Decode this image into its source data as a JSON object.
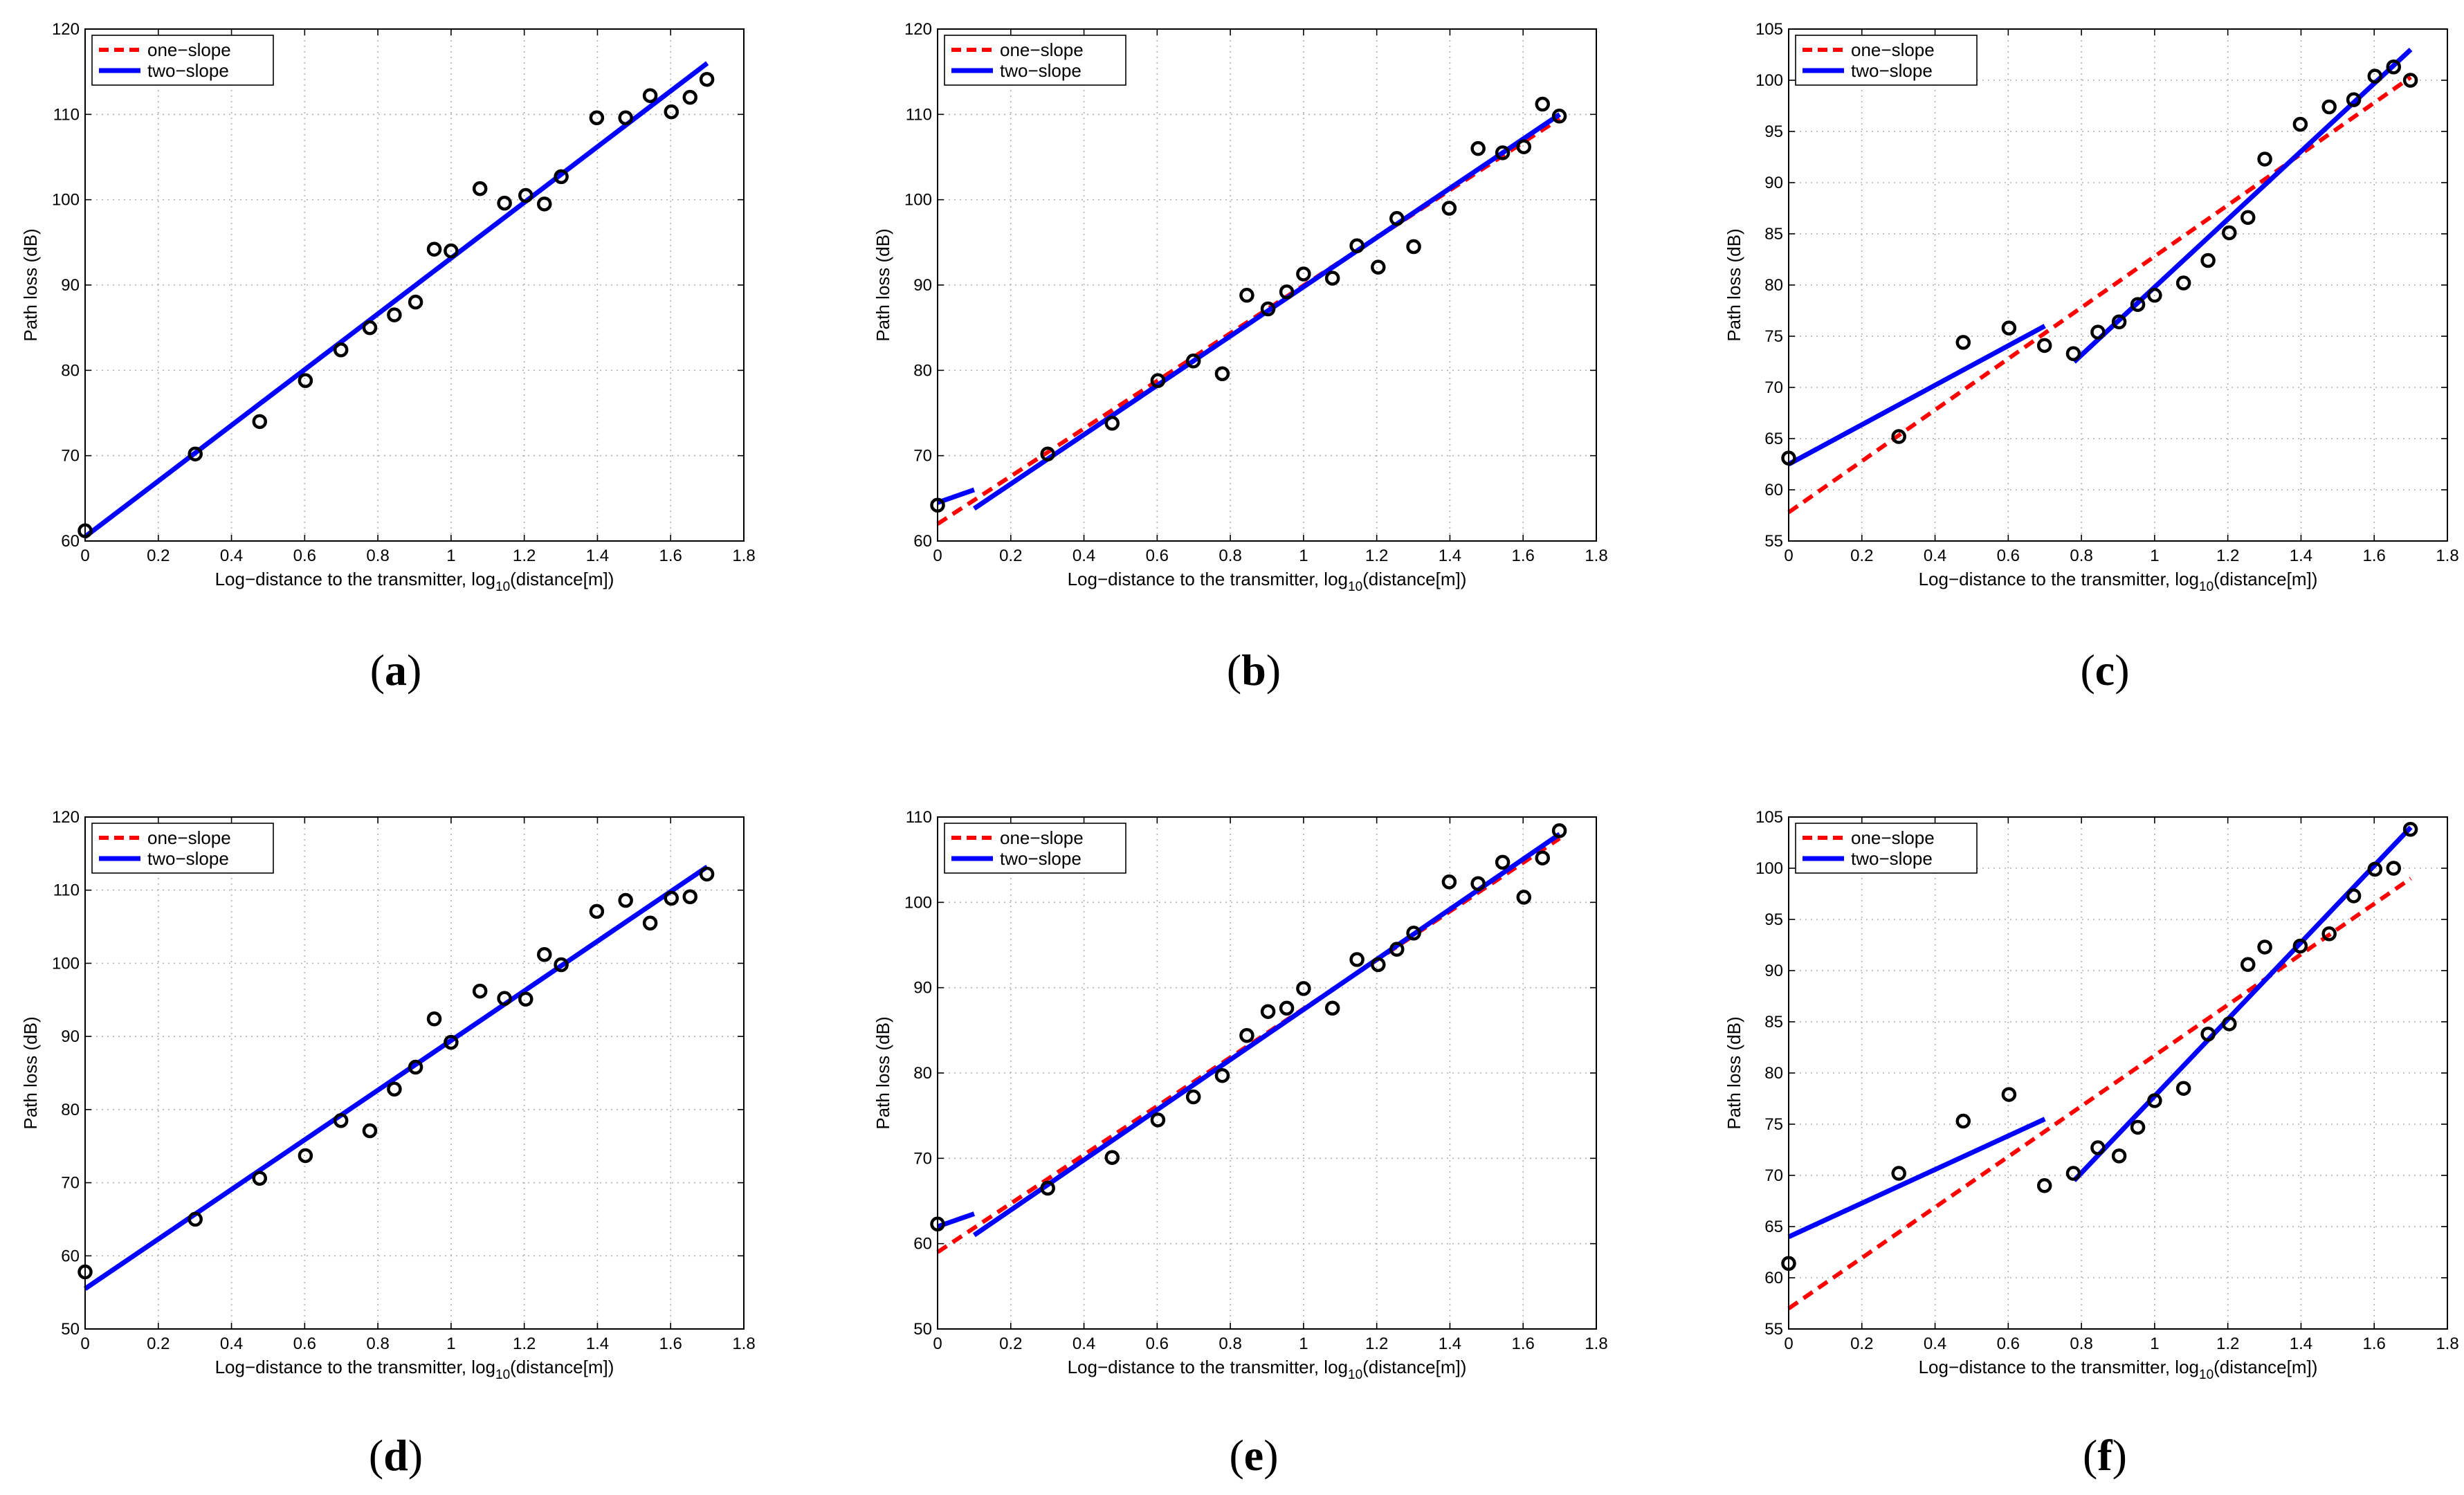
{
  "figure": {
    "xlabel_prefix": "Log−distance to the transmitter, log",
    "xlabel_sub": "10",
    "xlabel_suffix": "(distance[m])",
    "ylabel": "Path loss (dB)",
    "legend": {
      "one_slope": "one−slope",
      "two_slope": "two−slope"
    },
    "colors": {
      "one_slope": "#ff0000",
      "two_slope": "#0000ff",
      "points": "#000000"
    }
  },
  "chart_data": [
    {
      "type": "line",
      "panel": "a",
      "caption_label": "a",
      "caption_open": "(",
      "caption_close": ")",
      "xlim": [
        0,
        1.8
      ],
      "ylim": [
        60,
        120
      ],
      "xticks": [
        "0",
        "0.2",
        "0.4",
        "0.6",
        "0.8",
        "1",
        "1.2",
        "1.4",
        "1.6",
        "1.8"
      ],
      "yticks": [
        "60",
        "70",
        "80",
        "90",
        "100",
        "110",
        "120"
      ],
      "points": [
        [
          0.0,
          61.2
        ],
        [
          0.301,
          70.2
        ],
        [
          0.477,
          74.0
        ],
        [
          0.602,
          78.8
        ],
        [
          0.699,
          82.4
        ],
        [
          0.778,
          85.0
        ],
        [
          0.845,
          86.5
        ],
        [
          0.903,
          88.0
        ],
        [
          0.954,
          94.2
        ],
        [
          1.0,
          94.0
        ],
        [
          1.079,
          101.3
        ],
        [
          1.146,
          99.6
        ],
        [
          1.204,
          100.5
        ],
        [
          1.255,
          99.5
        ],
        [
          1.301,
          102.7
        ],
        [
          1.398,
          109.6
        ],
        [
          1.477,
          109.6
        ],
        [
          1.544,
          112.2
        ],
        [
          1.602,
          110.3
        ],
        [
          1.653,
          112.0
        ],
        [
          1.699,
          114.1
        ]
      ],
      "one_slope": [
        [
          0,
          60.5
        ],
        [
          1.7,
          116.0
        ]
      ],
      "two_slope": [
        [
          [
            0,
            60.5
          ],
          [
            1.7,
            116.0
          ]
        ]
      ]
    },
    {
      "type": "line",
      "panel": "b",
      "caption_label": "b",
      "caption_open": "(",
      "caption_close": ")",
      "xlim": [
        0,
        1.8
      ],
      "ylim": [
        60,
        120
      ],
      "xticks": [
        "0",
        "0.2",
        "0.4",
        "0.6",
        "0.8",
        "1",
        "1.2",
        "1.4",
        "1.6",
        "1.8"
      ],
      "yticks": [
        "60",
        "70",
        "80",
        "90",
        "100",
        "110",
        "120"
      ],
      "points": [
        [
          0.0,
          64.2
        ],
        [
          0.301,
          70.2
        ],
        [
          0.477,
          73.8
        ],
        [
          0.602,
          78.8
        ],
        [
          0.699,
          81.1
        ],
        [
          0.778,
          79.6
        ],
        [
          0.845,
          88.8
        ],
        [
          0.903,
          87.2
        ],
        [
          0.954,
          89.2
        ],
        [
          1.0,
          91.3
        ],
        [
          1.079,
          90.8
        ],
        [
          1.146,
          94.6
        ],
        [
          1.204,
          92.1
        ],
        [
          1.255,
          97.8
        ],
        [
          1.301,
          94.5
        ],
        [
          1.398,
          99.0
        ],
        [
          1.477,
          106.0
        ],
        [
          1.544,
          105.5
        ],
        [
          1.602,
          106.2
        ],
        [
          1.653,
          111.2
        ],
        [
          1.699,
          109.8
        ]
      ],
      "one_slope": [
        [
          0,
          62.0
        ],
        [
          1.7,
          109.5
        ]
      ],
      "two_slope": [
        [
          [
            0,
            64.5
          ],
          [
            0.1,
            66.0
          ]
        ],
        [
          [
            0.1,
            63.8
          ],
          [
            1.7,
            110.0
          ]
        ]
      ]
    },
    {
      "type": "line",
      "panel": "c",
      "caption_label": "c",
      "caption_open": "(",
      "caption_close": ")",
      "xlim": [
        0,
        1.8
      ],
      "ylim": [
        55,
        105
      ],
      "xticks": [
        "0",
        "0.2",
        "0.4",
        "0.6",
        "0.8",
        "1",
        "1.2",
        "1.4",
        "1.6",
        "1.8"
      ],
      "yticks": [
        "55",
        "60",
        "65",
        "70",
        "75",
        "80",
        "85",
        "90",
        "95",
        "100",
        "105"
      ],
      "points": [
        [
          0.0,
          63.1
        ],
        [
          0.301,
          65.2
        ],
        [
          0.477,
          74.4
        ],
        [
          0.602,
          75.8
        ],
        [
          0.699,
          74.1
        ],
        [
          0.778,
          73.3
        ],
        [
          0.845,
          75.4
        ],
        [
          0.903,
          76.4
        ],
        [
          0.954,
          78.1
        ],
        [
          1.0,
          79.0
        ],
        [
          1.079,
          80.2
        ],
        [
          1.146,
          82.4
        ],
        [
          1.204,
          85.1
        ],
        [
          1.255,
          86.6
        ],
        [
          1.301,
          92.3
        ],
        [
          1.398,
          95.7
        ],
        [
          1.477,
          97.4
        ],
        [
          1.544,
          98.1
        ],
        [
          1.602,
          100.4
        ],
        [
          1.653,
          101.3
        ],
        [
          1.699,
          100.0
        ]
      ],
      "one_slope": [
        [
          0,
          57.8
        ],
        [
          1.7,
          100.3
        ]
      ],
      "two_slope": [
        [
          [
            0,
            62.5
          ],
          [
            0.7,
            76.0
          ]
        ],
        [
          [
            0.78,
            72.5
          ],
          [
            1.7,
            103.0
          ]
        ]
      ]
    },
    {
      "type": "line",
      "panel": "d",
      "caption_label": "d",
      "caption_open": "(",
      "caption_close": ")",
      "xlim": [
        0,
        1.8
      ],
      "ylim": [
        50,
        120
      ],
      "xticks": [
        "0",
        "0.2",
        "0.4",
        "0.6",
        "0.8",
        "1",
        "1.2",
        "1.4",
        "1.6",
        "1.8"
      ],
      "yticks": [
        "50",
        "60",
        "70",
        "80",
        "90",
        "100",
        "110",
        "120"
      ],
      "points": [
        [
          0.0,
          57.8
        ],
        [
          0.301,
          65.0
        ],
        [
          0.477,
          70.6
        ],
        [
          0.602,
          73.7
        ],
        [
          0.699,
          78.5
        ],
        [
          0.778,
          77.1
        ],
        [
          0.845,
          82.8
        ],
        [
          0.903,
          85.8
        ],
        [
          0.954,
          92.4
        ],
        [
          1.0,
          89.2
        ],
        [
          1.079,
          96.2
        ],
        [
          1.146,
          95.2
        ],
        [
          1.204,
          95.1
        ],
        [
          1.255,
          101.2
        ],
        [
          1.301,
          99.8
        ],
        [
          1.398,
          107.1
        ],
        [
          1.477,
          108.6
        ],
        [
          1.544,
          105.5
        ],
        [
          1.602,
          108.9
        ],
        [
          1.653,
          109.1
        ],
        [
          1.699,
          112.2
        ]
      ],
      "one_slope": [
        [
          0,
          55.5
        ],
        [
          1.7,
          113.2
        ]
      ],
      "two_slope": [
        [
          [
            0,
            55.5
          ],
          [
            1.7,
            113.2
          ]
        ]
      ]
    },
    {
      "type": "line",
      "panel": "e",
      "caption_label": "e",
      "caption_open": "(",
      "caption_close": ")",
      "xlim": [
        0,
        1.8
      ],
      "ylim": [
        50,
        110
      ],
      "xticks": [
        "0",
        "0.2",
        "0.4",
        "0.6",
        "0.8",
        "1",
        "1.2",
        "1.4",
        "1.6",
        "1.8"
      ],
      "yticks": [
        "50",
        "60",
        "70",
        "80",
        "90",
        "100",
        "110"
      ],
      "points": [
        [
          0.0,
          62.3
        ],
        [
          0.301,
          66.5
        ],
        [
          0.477,
          70.1
        ],
        [
          0.602,
          74.5
        ],
        [
          0.699,
          77.2
        ],
        [
          0.778,
          79.7
        ],
        [
          0.845,
          84.4
        ],
        [
          0.903,
          87.2
        ],
        [
          0.954,
          87.6
        ],
        [
          1.0,
          89.9
        ],
        [
          1.079,
          87.6
        ],
        [
          1.146,
          93.3
        ],
        [
          1.204,
          92.7
        ],
        [
          1.255,
          94.5
        ],
        [
          1.301,
          96.4
        ],
        [
          1.398,
          102.4
        ],
        [
          1.477,
          102.2
        ],
        [
          1.544,
          104.7
        ],
        [
          1.602,
          100.6
        ],
        [
          1.653,
          105.2
        ],
        [
          1.699,
          108.4
        ]
      ],
      "one_slope": [
        [
          0,
          59.0
        ],
        [
          1.7,
          107.5
        ]
      ],
      "two_slope": [
        [
          [
            0,
            62.0
          ],
          [
            0.1,
            63.5
          ]
        ],
        [
          [
            0.1,
            61.0
          ],
          [
            1.7,
            108.0
          ]
        ]
      ]
    },
    {
      "type": "line",
      "panel": "f",
      "caption_label": "f",
      "caption_open": "(",
      "caption_close": ")",
      "xlim": [
        0,
        1.8
      ],
      "ylim": [
        55,
        105
      ],
      "xticks": [
        "0",
        "0.2",
        "0.4",
        "0.6",
        "0.8",
        "1",
        "1.2",
        "1.4",
        "1.6",
        "1.8"
      ],
      "yticks": [
        "55",
        "60",
        "65",
        "70",
        "75",
        "80",
        "85",
        "90",
        "95",
        "100",
        "105"
      ],
      "points": [
        [
          0.0,
          61.4
        ],
        [
          0.301,
          70.2
        ],
        [
          0.477,
          75.3
        ],
        [
          0.602,
          77.9
        ],
        [
          0.699,
          69.0
        ],
        [
          0.778,
          70.2
        ],
        [
          0.845,
          72.7
        ],
        [
          0.903,
          71.9
        ],
        [
          0.954,
          74.7
        ],
        [
          1.0,
          77.3
        ],
        [
          1.079,
          78.5
        ],
        [
          1.146,
          83.8
        ],
        [
          1.204,
          84.8
        ],
        [
          1.255,
          90.6
        ],
        [
          1.301,
          92.3
        ],
        [
          1.398,
          92.4
        ],
        [
          1.477,
          93.6
        ],
        [
          1.544,
          97.3
        ],
        [
          1.602,
          99.9
        ],
        [
          1.653,
          100.0
        ],
        [
          1.699,
          103.8
        ]
      ],
      "one_slope": [
        [
          0,
          57.0
        ],
        [
          1.7,
          99.0
        ]
      ],
      "two_slope": [
        [
          [
            0,
            64.0
          ],
          [
            0.7,
            75.5
          ]
        ],
        [
          [
            0.78,
            69.5
          ],
          [
            1.7,
            104.0
          ]
        ]
      ]
    }
  ]
}
